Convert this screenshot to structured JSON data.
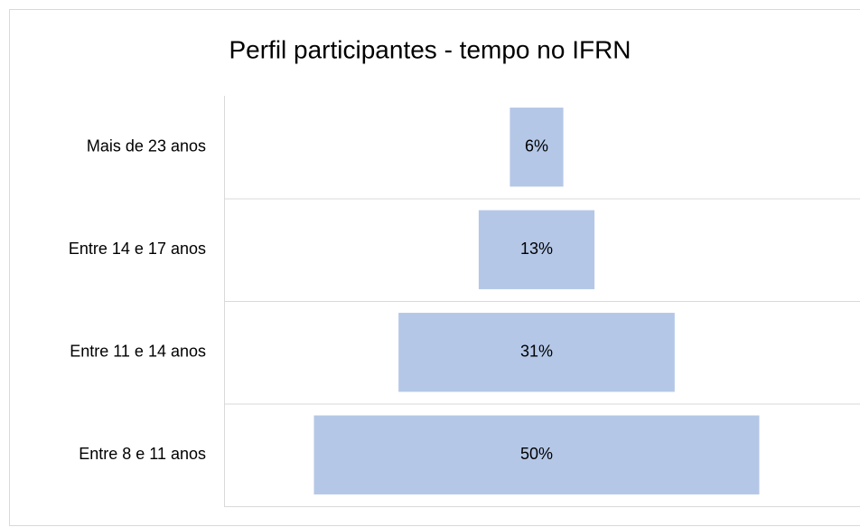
{
  "chart_data": {
    "type": "funnel",
    "title": "Perfil participantes - tempo no IFRN",
    "categories": [
      "Mais de 23 anos",
      "Entre 14 e 17 anos",
      "Entre 11 e 14 anos",
      "Entre 8 e 11 anos"
    ],
    "values": [
      6,
      13,
      31,
      50
    ],
    "value_labels": [
      "6%",
      "13%",
      "31%",
      "50%"
    ],
    "color": "#b4c7e7",
    "grid": true
  }
}
